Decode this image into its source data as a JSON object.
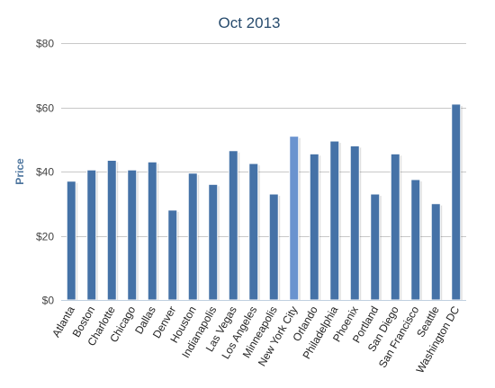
{
  "chart_data": {
    "type": "bar",
    "title": "Oct 2013",
    "xlabel": "",
    "ylabel": "Price",
    "ylim": [
      0,
      80
    ],
    "yticks": [
      0,
      20,
      40,
      60,
      80
    ],
    "ytick_labels": [
      "$0",
      "$20",
      "$40",
      "$60",
      "$80"
    ],
    "categories": [
      "Atlanta",
      "Boston",
      "Charlotte",
      "Chicago",
      "Dallas",
      "Denver",
      "Houston",
      "Indianapolis",
      "Las Vegas",
      "Los Angeles",
      "Minneapolis",
      "New York City",
      "Orlando",
      "Philadelphia",
      "Phoenix",
      "Portland",
      "San Diego",
      "San Francisco",
      "Seattle",
      "Washington DC"
    ],
    "values": [
      37,
      40.5,
      43.5,
      40.5,
      43,
      28,
      39.5,
      36,
      46.5,
      42.5,
      33,
      51,
      45.5,
      49.5,
      48,
      33,
      45.5,
      37.5,
      30,
      61
    ],
    "highlighted_index": 11,
    "grid": true,
    "colors": {
      "bar": "#4572a7",
      "bar_highlight": "#6a93cf",
      "title": "#274b6d",
      "ylabel": "#4d759e"
    }
  }
}
